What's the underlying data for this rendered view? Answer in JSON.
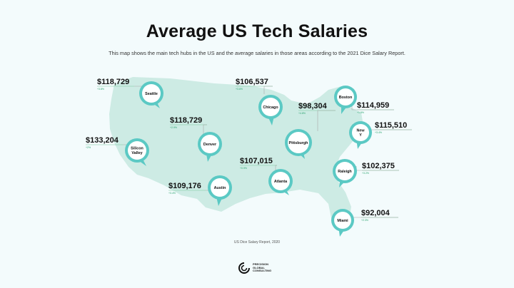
{
  "header": {
    "title": "Average US Tech Salaries",
    "subtitle": "This map shows the main tech hubs in the US and the average salaries in those areas according to the 2021 Dice Salary Report."
  },
  "colors": {
    "background": "#f3fbfc",
    "land": "#cdebe4",
    "pin": "#5bc9c4",
    "leader": "#a8a8a8",
    "underline": "#79c79a"
  },
  "hubs": [
    {
      "city": "Seattle",
      "salary": "$118,729",
      "note": "+3.8%"
    },
    {
      "city": "Chicago",
      "salary": "$106,537",
      "note": "+3.6%"
    },
    {
      "city": "Boston",
      "salary": "$114,959",
      "note": "+1.5%"
    },
    {
      "city": "Pittsburgh",
      "salary": "$98,304",
      "note": "+4.8%"
    },
    {
      "city": "New Y",
      "salary": "$115,510",
      "note": "+3.4%"
    },
    {
      "city": "Denver",
      "salary": "$118,729",
      "note": "+2.9%"
    },
    {
      "city": "Silicon Valley",
      "salary": "$133,204",
      "note": "+2%"
    },
    {
      "city": "Atlanta",
      "salary": "$107,015",
      "note": "+0.9%"
    },
    {
      "city": "Raleigh",
      "salary": "$102,375",
      "note": "+3.2%"
    },
    {
      "city": "Austin",
      "salary": "$109,176",
      "note": "+3.4%"
    },
    {
      "city": "Miami",
      "salary": "$92,004",
      "note": "+2.3%"
    }
  ],
  "footer": {
    "source": "US Dice Salary Report, 2020",
    "logo_line1": "PRECISION",
    "logo_line2": "GLOBAL",
    "logo_line3": "CONSULTING"
  }
}
